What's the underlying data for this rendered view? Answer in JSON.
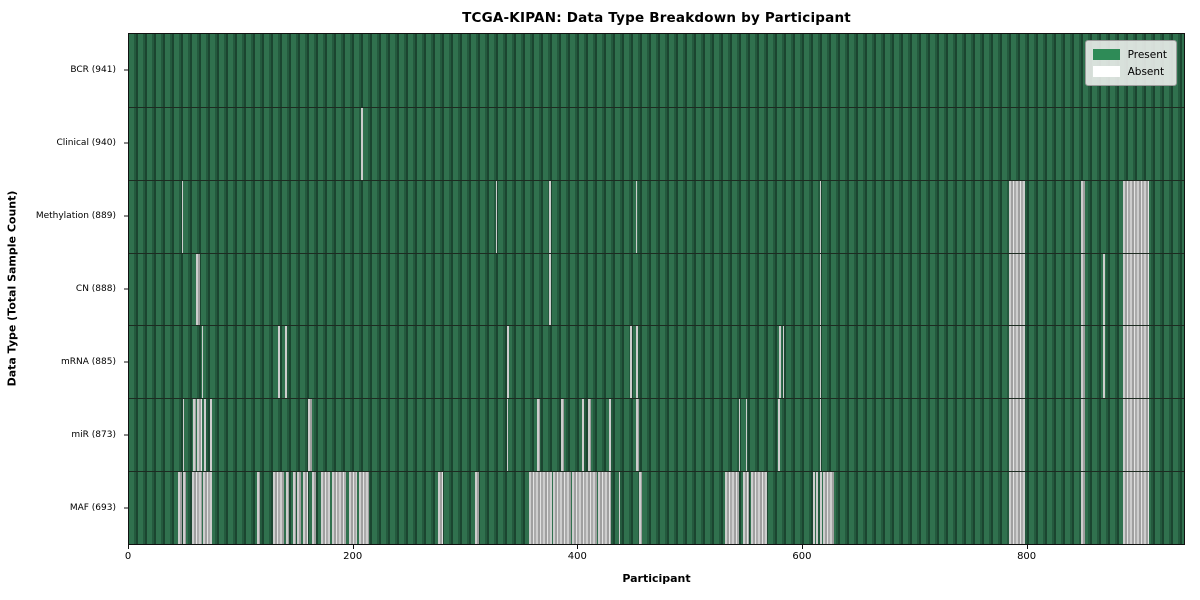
{
  "chart_data": {
    "type": "heatmap",
    "title": "TCGA-KIPAN: Data Type Breakdown by Participant",
    "xlabel": "Participant",
    "ylabel": "Data Type (Total Sample Count)",
    "x_max": 941,
    "x_ticks": [
      0,
      200,
      400,
      600,
      800
    ],
    "grid": false,
    "legend": {
      "position": "upper-right",
      "present_label": "Present",
      "absent_label": "Absent",
      "present_color": "#2e8b57",
      "absent_color": "#ffffff"
    },
    "colors": {
      "present_fill": "#2e8b57",
      "present_fill_shaded": "#1b4530",
      "absent_fill": "#b9b9b9",
      "background": "#ffffff"
    },
    "rows": [
      {
        "data_type": "BCR",
        "label": "BCR (941)",
        "present_count": 941,
        "absent_ranges": []
      },
      {
        "data_type": "Clinical",
        "label": "Clinical (940)",
        "present_count": 940,
        "absent_ranges": [
          [
            207,
            208
          ]
        ]
      },
      {
        "data_type": "Methylation",
        "label": "Methylation (889)",
        "present_count": 889,
        "absent_ranges": [
          [
            47,
            48
          ],
          [
            327,
            328
          ],
          [
            375,
            376
          ],
          [
            452,
            453
          ],
          [
            616,
            617
          ],
          [
            785,
            799
          ],
          [
            849,
            853
          ],
          [
            887,
            910
          ]
        ]
      },
      {
        "data_type": "CN",
        "label": "CN (888)",
        "present_count": 888,
        "absent_ranges": [
          [
            60,
            63
          ],
          [
            375,
            376
          ],
          [
            616,
            617
          ],
          [
            785,
            799
          ],
          [
            849,
            853
          ],
          [
            869,
            870
          ],
          [
            887,
            910
          ]
        ]
      },
      {
        "data_type": "mRNA",
        "label": "mRNA (885)",
        "present_count": 885,
        "absent_ranges": [
          [
            65,
            66
          ],
          [
            133,
            135
          ],
          [
            139,
            141
          ],
          [
            337,
            339
          ],
          [
            447,
            449
          ],
          [
            452,
            454
          ],
          [
            580,
            581
          ],
          [
            583,
            584
          ],
          [
            616,
            617
          ],
          [
            785,
            799
          ],
          [
            849,
            853
          ],
          [
            869,
            870
          ],
          [
            887,
            910
          ]
        ]
      },
      {
        "data_type": "miR",
        "label": "miR (873)",
        "present_count": 873,
        "absent_ranges": [
          [
            48,
            49
          ],
          [
            57,
            60
          ],
          [
            61,
            65
          ],
          [
            67,
            69
          ],
          [
            72,
            74
          ],
          [
            160,
            163
          ],
          [
            337,
            338
          ],
          [
            364,
            367
          ],
          [
            385,
            388
          ],
          [
            404,
            406
          ],
          [
            409,
            412
          ],
          [
            428,
            430
          ],
          [
            452,
            455
          ],
          [
            544,
            545
          ],
          [
            550,
            551
          ],
          [
            579,
            581
          ],
          [
            616,
            617
          ],
          [
            785,
            799
          ],
          [
            849,
            853
          ],
          [
            887,
            910
          ]
        ]
      },
      {
        "data_type": "MAF",
        "label": "MAF (693)",
        "present_count": 693,
        "absent_ranges": [
          [
            44,
            47
          ],
          [
            48,
            51
          ],
          [
            56,
            65
          ],
          [
            66,
            74
          ],
          [
            114,
            117
          ],
          [
            128,
            138
          ],
          [
            140,
            143
          ],
          [
            146,
            149
          ],
          [
            150,
            153
          ],
          [
            155,
            160
          ],
          [
            163,
            167
          ],
          [
            171,
            179
          ],
          [
            181,
            194
          ],
          [
            196,
            203
          ],
          [
            205,
            214
          ],
          [
            276,
            280
          ],
          [
            309,
            312
          ],
          [
            357,
            377
          ],
          [
            378,
            394
          ],
          [
            395,
            417
          ],
          [
            418,
            430
          ],
          [
            437,
            438
          ],
          [
            455,
            458
          ],
          [
            532,
            544
          ],
          [
            548,
            553
          ],
          [
            555,
            569
          ],
          [
            610,
            612
          ],
          [
            613,
            615
          ],
          [
            616,
            618
          ],
          [
            619,
            629
          ],
          [
            785,
            799
          ],
          [
            849,
            853
          ],
          [
            887,
            910
          ]
        ]
      }
    ]
  }
}
